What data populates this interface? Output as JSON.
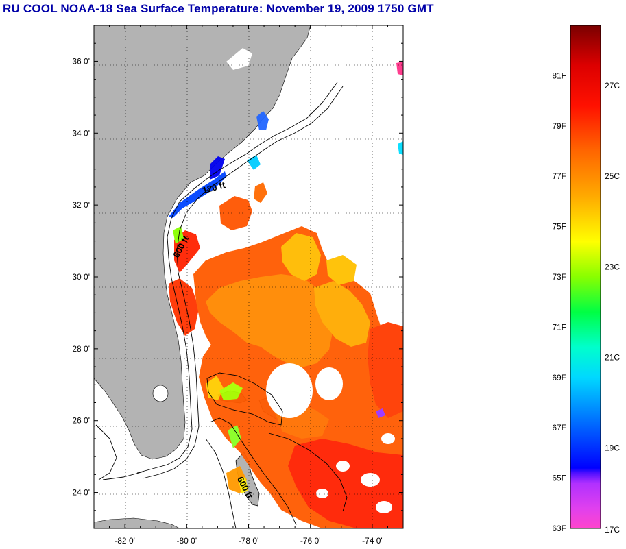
{
  "title": "RU COOL  NOAA-18  Sea Surface Temperature:  November 19, 2009 1750 GMT",
  "map": {
    "lon_range": [
      -83,
      -73
    ],
    "lat_range": [
      23,
      37
    ],
    "lon_ticks": [
      {
        "value": -82,
        "label": "-82 0'"
      },
      {
        "value": -80,
        "label": "-80 0'"
      },
      {
        "value": -78,
        "label": "-78 0'"
      },
      {
        "value": -76,
        "label": "-76 0'"
      },
      {
        "value": -74,
        "label": "-74 0'"
      }
    ],
    "lat_ticks": [
      {
        "value": 36,
        "label": "36 0'"
      },
      {
        "value": 34,
        "label": "34 0'"
      },
      {
        "value": 32,
        "label": "32 0'"
      },
      {
        "value": 30,
        "label": "30 0'"
      },
      {
        "value": 28,
        "label": "28 0'"
      },
      {
        "value": 26,
        "label": "26 0'"
      },
      {
        "value": 24,
        "label": "24 0'"
      }
    ],
    "grid": "dotted",
    "land_color": "#b3b3b3",
    "contour_labels": [
      {
        "text": "120 ft",
        "lon": -79.1,
        "lat": 32.4,
        "rotate": -15
      },
      {
        "text": "600 ft",
        "lon": -80.1,
        "lat": 30.8,
        "rotate": -62
      },
      {
        "text": "600 ft",
        "lon": -78.2,
        "lat": 24.1,
        "rotate": 62
      }
    ]
  },
  "colorbar": {
    "min_F": 63,
    "max_F": 83,
    "fahrenheit_ticks": [
      {
        "value": 63,
        "label": "63F"
      },
      {
        "value": 65,
        "label": "65F"
      },
      {
        "value": 67,
        "label": "67F"
      },
      {
        "value": 69,
        "label": "69F"
      },
      {
        "value": 71,
        "label": "71F"
      },
      {
        "value": 73,
        "label": "73F"
      },
      {
        "value": 75,
        "label": "75F"
      },
      {
        "value": 77,
        "label": "77F"
      },
      {
        "value": 79,
        "label": "79F"
      },
      {
        "value": 81,
        "label": "81F"
      }
    ],
    "celsius_ticks": [
      {
        "value": 17,
        "label": "17C"
      },
      {
        "value": 19,
        "label": "19C"
      },
      {
        "value": 21,
        "label": "21C"
      },
      {
        "value": 23,
        "label": "23C"
      },
      {
        "value": 25,
        "label": "25C"
      },
      {
        "value": 27,
        "label": "27C"
      }
    ],
    "colors": [
      "#ff44cc",
      "#b030ff",
      "#0000ff",
      "#0088ff",
      "#00ffff",
      "#00ff66",
      "#88ff00",
      "#ffff00",
      "#ffaa00",
      "#ff5500",
      "#ff0000",
      "#880000"
    ]
  }
}
